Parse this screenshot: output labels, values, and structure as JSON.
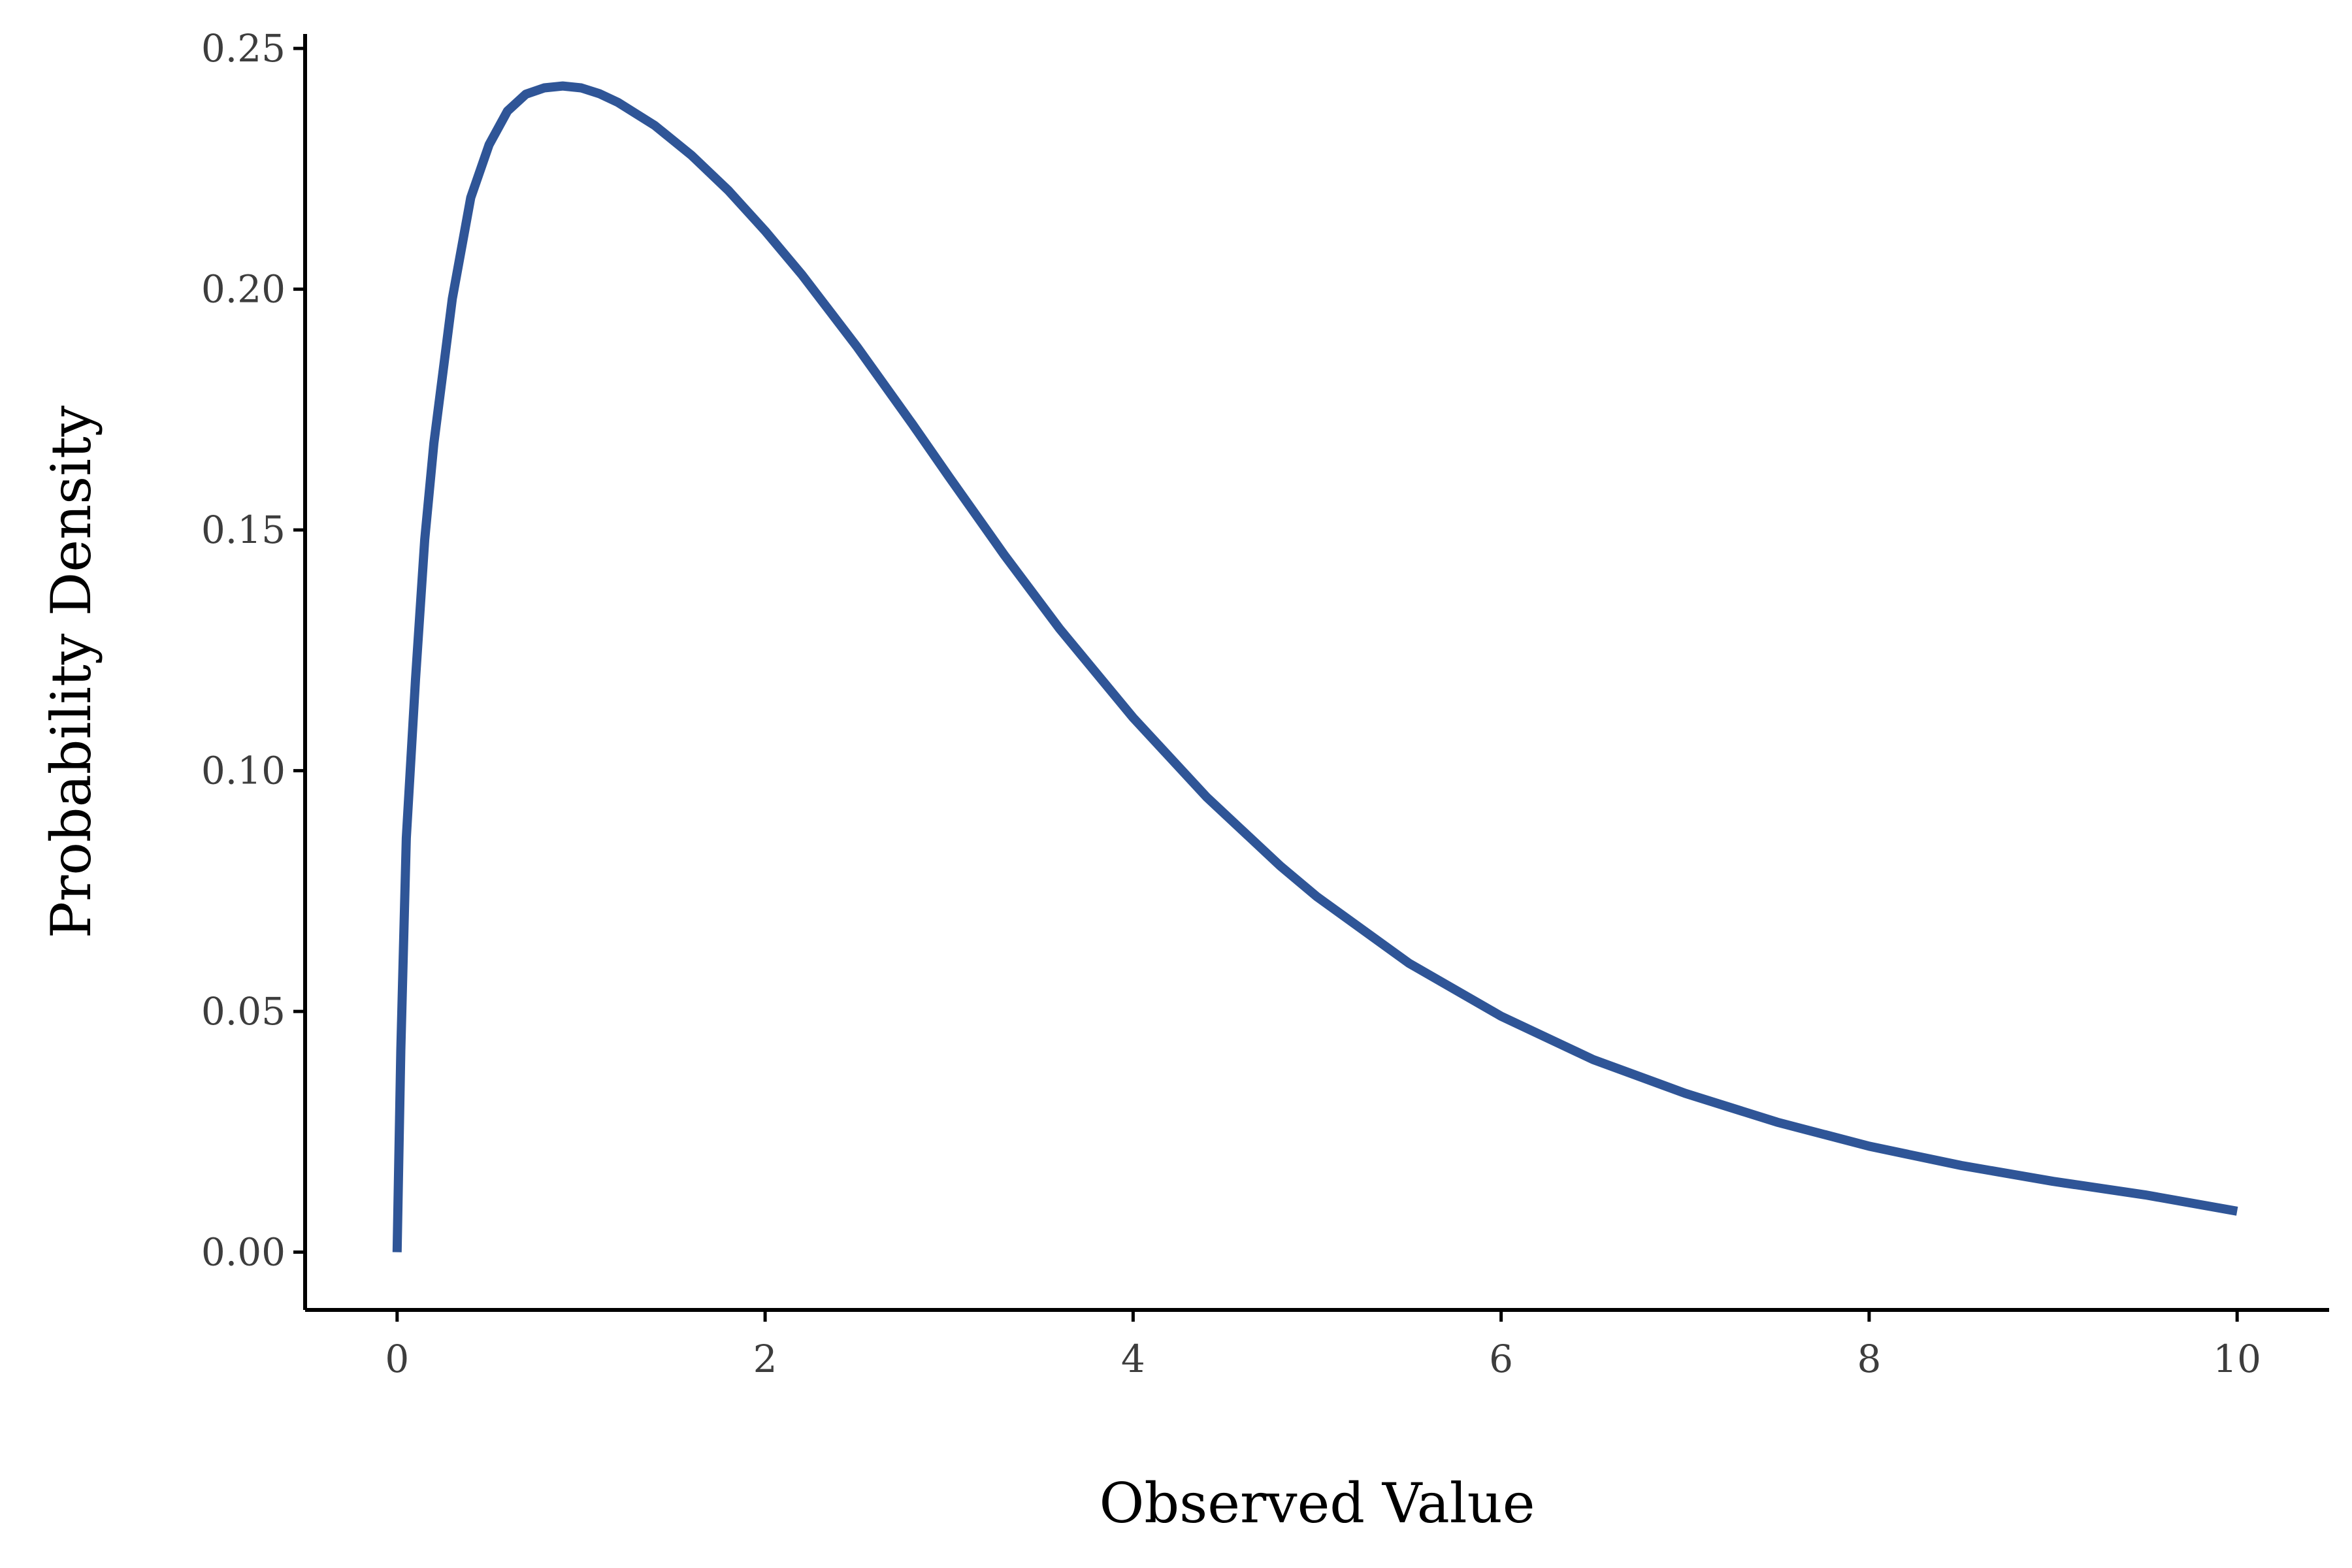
{
  "chart_data": {
    "type": "line",
    "title": "",
    "xlabel": "Observed Value",
    "ylabel": "Probability Density",
    "xlim": [
      -0.5,
      10.5
    ],
    "ylim": [
      -0.012,
      0.253
    ],
    "x_ticks": [
      0,
      2,
      4,
      6,
      8,
      10
    ],
    "x_tick_labels": [
      "0",
      "2",
      "4",
      "6",
      "8",
      "10"
    ],
    "y_ticks": [
      0,
      0.05,
      0.1,
      0.15,
      0.2,
      0.25
    ],
    "y_tick_labels": [
      "0.00",
      "0.05",
      "0.10",
      "0.15",
      "0.20",
      "0.25"
    ],
    "grid": false,
    "legend": "none",
    "series": [
      {
        "color": "#2f5597",
        "x": [
          0,
          0.02,
          0.05,
          0.1,
          0.15,
          0.2,
          0.3,
          0.4,
          0.5,
          0.6,
          0.7,
          0.8,
          0.9,
          1.0,
          1.1,
          1.2,
          1.4,
          1.6,
          1.8,
          2.0,
          2.2,
          2.5,
          2.8,
          3.0,
          3.3,
          3.6,
          4.0,
          4.4,
          4.8,
          5.0,
          5.5,
          6.0,
          6.5,
          7.0,
          7.5,
          8.0,
          8.5,
          9.0,
          9.5,
          10.0
        ],
        "y": [
          0,
          0.042,
          0.086,
          0.119,
          0.148,
          0.168,
          0.198,
          0.219,
          0.23,
          0.237,
          0.2405,
          0.2418,
          0.2422,
          0.2418,
          0.2406,
          0.2388,
          0.234,
          0.2278,
          0.2205,
          0.2121,
          0.203,
          0.188,
          0.172,
          0.161,
          0.1448,
          0.1295,
          0.111,
          0.0945,
          0.0802,
          0.0738,
          0.06,
          0.049,
          0.04,
          0.033,
          0.027,
          0.022,
          0.018,
          0.0147,
          0.0119,
          0.0085
        ]
      }
    ]
  }
}
